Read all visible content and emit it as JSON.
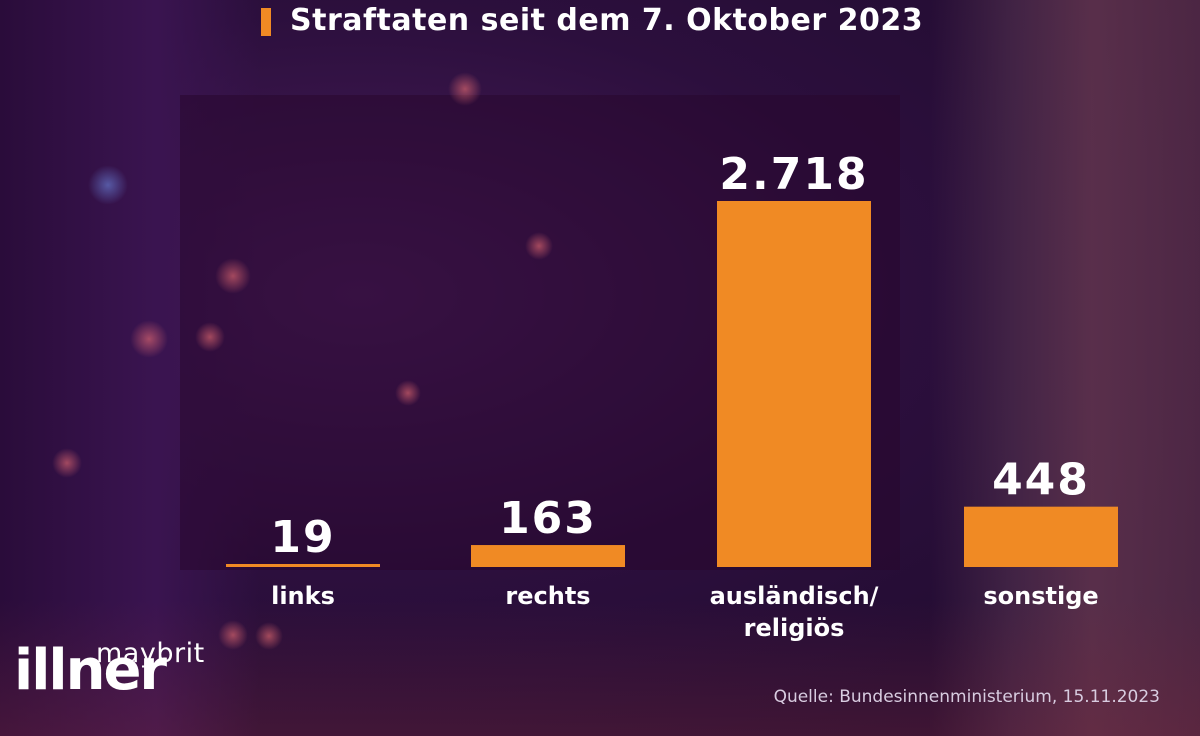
{
  "title": "Straftaten seit dem 7. Oktober 2023",
  "source": "Quelle: Bundesinnenministerium, 15.11.2023",
  "logo": {
    "top": "maybrit",
    "bottom": "illner"
  },
  "colors": {
    "bar": "#f08a24",
    "accent": "#f08a24",
    "text": "#ffffff"
  },
  "chart_data": {
    "type": "bar",
    "title": "Straftaten seit dem 7. Oktober 2023",
    "categories": [
      "links",
      "rechts",
      "ausländisch/\nreligiös",
      "sonstige"
    ],
    "values": [
      19,
      163,
      2718,
      448
    ],
    "value_labels": [
      "19",
      "163",
      "2.718",
      "448"
    ],
    "xlabel": "",
    "ylabel": "",
    "grid": false,
    "legend": "none"
  }
}
